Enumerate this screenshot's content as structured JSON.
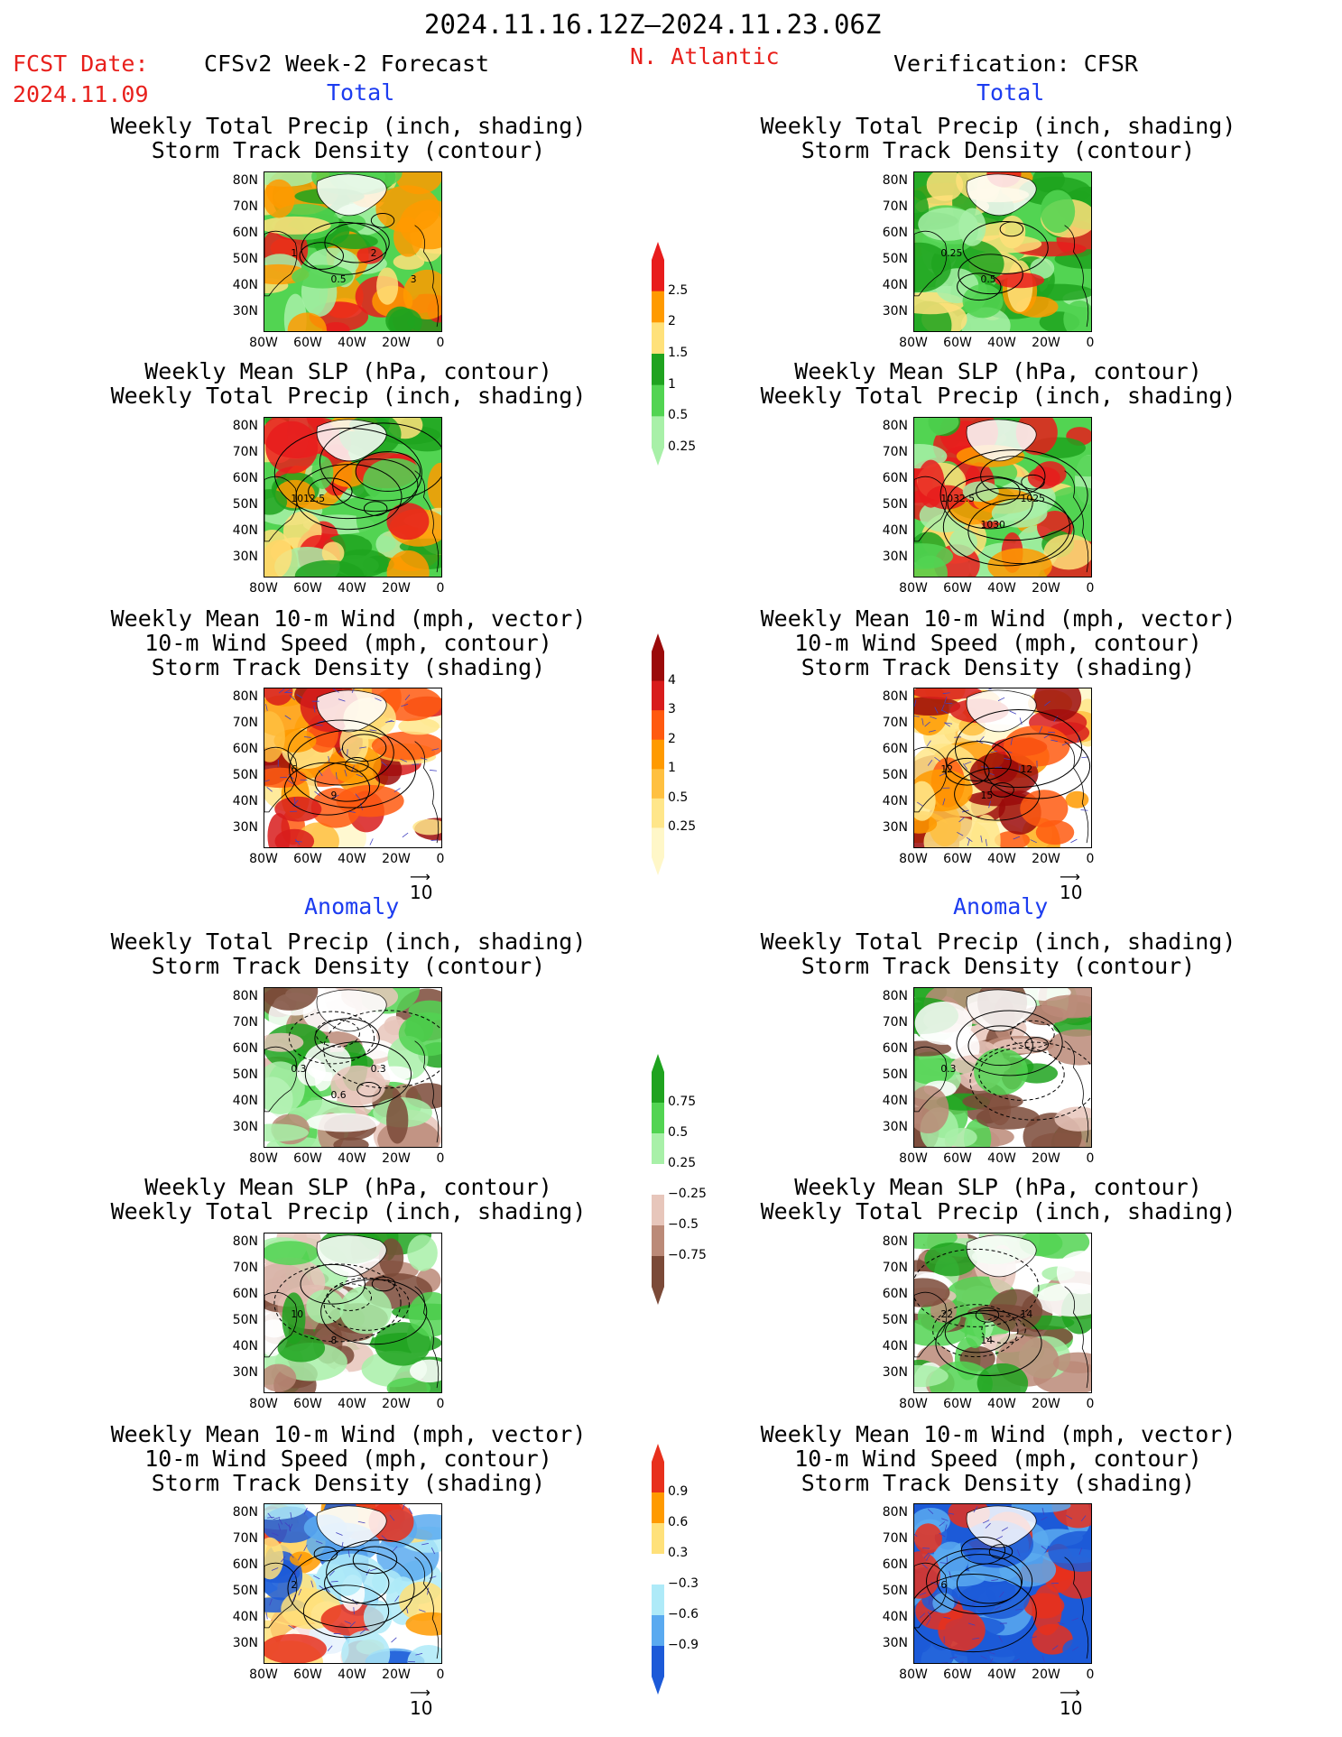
{
  "header": {
    "date_range": "2024.11.16.12Z–2024.11.23.06Z",
    "fcst_label": "FCST Date:",
    "fcst_date": "2024.11.09",
    "left_title": "CFSv2 Week-2 Forecast",
    "region": "N. Atlantic",
    "right_title": "Verification: CFSR"
  },
  "sections": {
    "total": "Total",
    "anomaly": "Anomaly"
  },
  "panel_titles": {
    "precip_storm": [
      "Weekly Total Precip (inch, shading)",
      "Storm Track Density (contour)"
    ],
    "slp_precip": [
      "Weekly Mean SLP (hPa, contour)",
      "Weekly Total Precip (inch, shading)"
    ],
    "wind_storm": [
      "Weekly Mean 10-m Wind (mph, vector)",
      "10-m Wind Speed (mph, contour)",
      "Storm Track Density (shading)"
    ]
  },
  "axes": {
    "lat_ticks": [
      "80N",
      "70N",
      "60N",
      "50N",
      "40N",
      "30N"
    ],
    "lon_ticks": [
      "80W",
      "60W",
      "40W",
      "20W",
      "0"
    ]
  },
  "vector_ref": "10",
  "colorbars": {
    "precip_total": {
      "labels": [
        "2.5",
        "2",
        "1.5",
        "1",
        "0.5",
        "0.25"
      ],
      "colors": [
        "#e81c1c",
        "#ff9a00",
        "#ffe17a",
        "#1fa31f",
        "#52d452",
        "#a8f0a8"
      ]
    },
    "storm_total": {
      "labels": [
        "4",
        "3",
        "2",
        "1",
        "0.5",
        "0.25"
      ],
      "colors": [
        "#9b0a0a",
        "#d81c1c",
        "#ff5a10",
        "#ff9a00",
        "#ffc040",
        "#ffe68a",
        "#fff7c8"
      ]
    },
    "precip_anom": {
      "labels": [
        "0.75",
        "0.5",
        "0.25",
        "−0.25",
        "−0.5",
        "−0.75"
      ],
      "colors": [
        "#1fa31f",
        "#52d452",
        "#a8f0a8",
        "#ffffff",
        "#e7c6bb",
        "#bb8a78",
        "#7b4a38"
      ]
    },
    "storm_anom": {
      "labels": [
        "0.9",
        "0.6",
        "0.3",
        "−0.3",
        "−0.6",
        "−0.9"
      ],
      "colors": [
        "#e8301c",
        "#ff9a00",
        "#ffe17a",
        "#ffffff",
        "#aeeaf8",
        "#5aaaf0",
        "#1c5ad8"
      ]
    }
  },
  "contour_labels": {
    "r1_left": [
      "1",
      "0.5",
      "2",
      "3"
    ],
    "r1_right": [
      "0.25",
      "0.5"
    ],
    "r2_left": [
      "1012.5"
    ],
    "r2_right": [
      "1032.5",
      "1030",
      "1025"
    ],
    "r3_left": [
      "6",
      "9"
    ],
    "r3_right": [
      "12",
      "15",
      "12"
    ],
    "r4_left": [
      "0.3",
      "0.6",
      "0.3"
    ],
    "r4_right": [
      "0.3"
    ],
    "r5_left": [
      "10",
      "8"
    ],
    "r5_right": [
      "22",
      "14",
      "14"
    ],
    "r6_left": [
      "2"
    ],
    "r6_right": [
      "6"
    ]
  }
}
